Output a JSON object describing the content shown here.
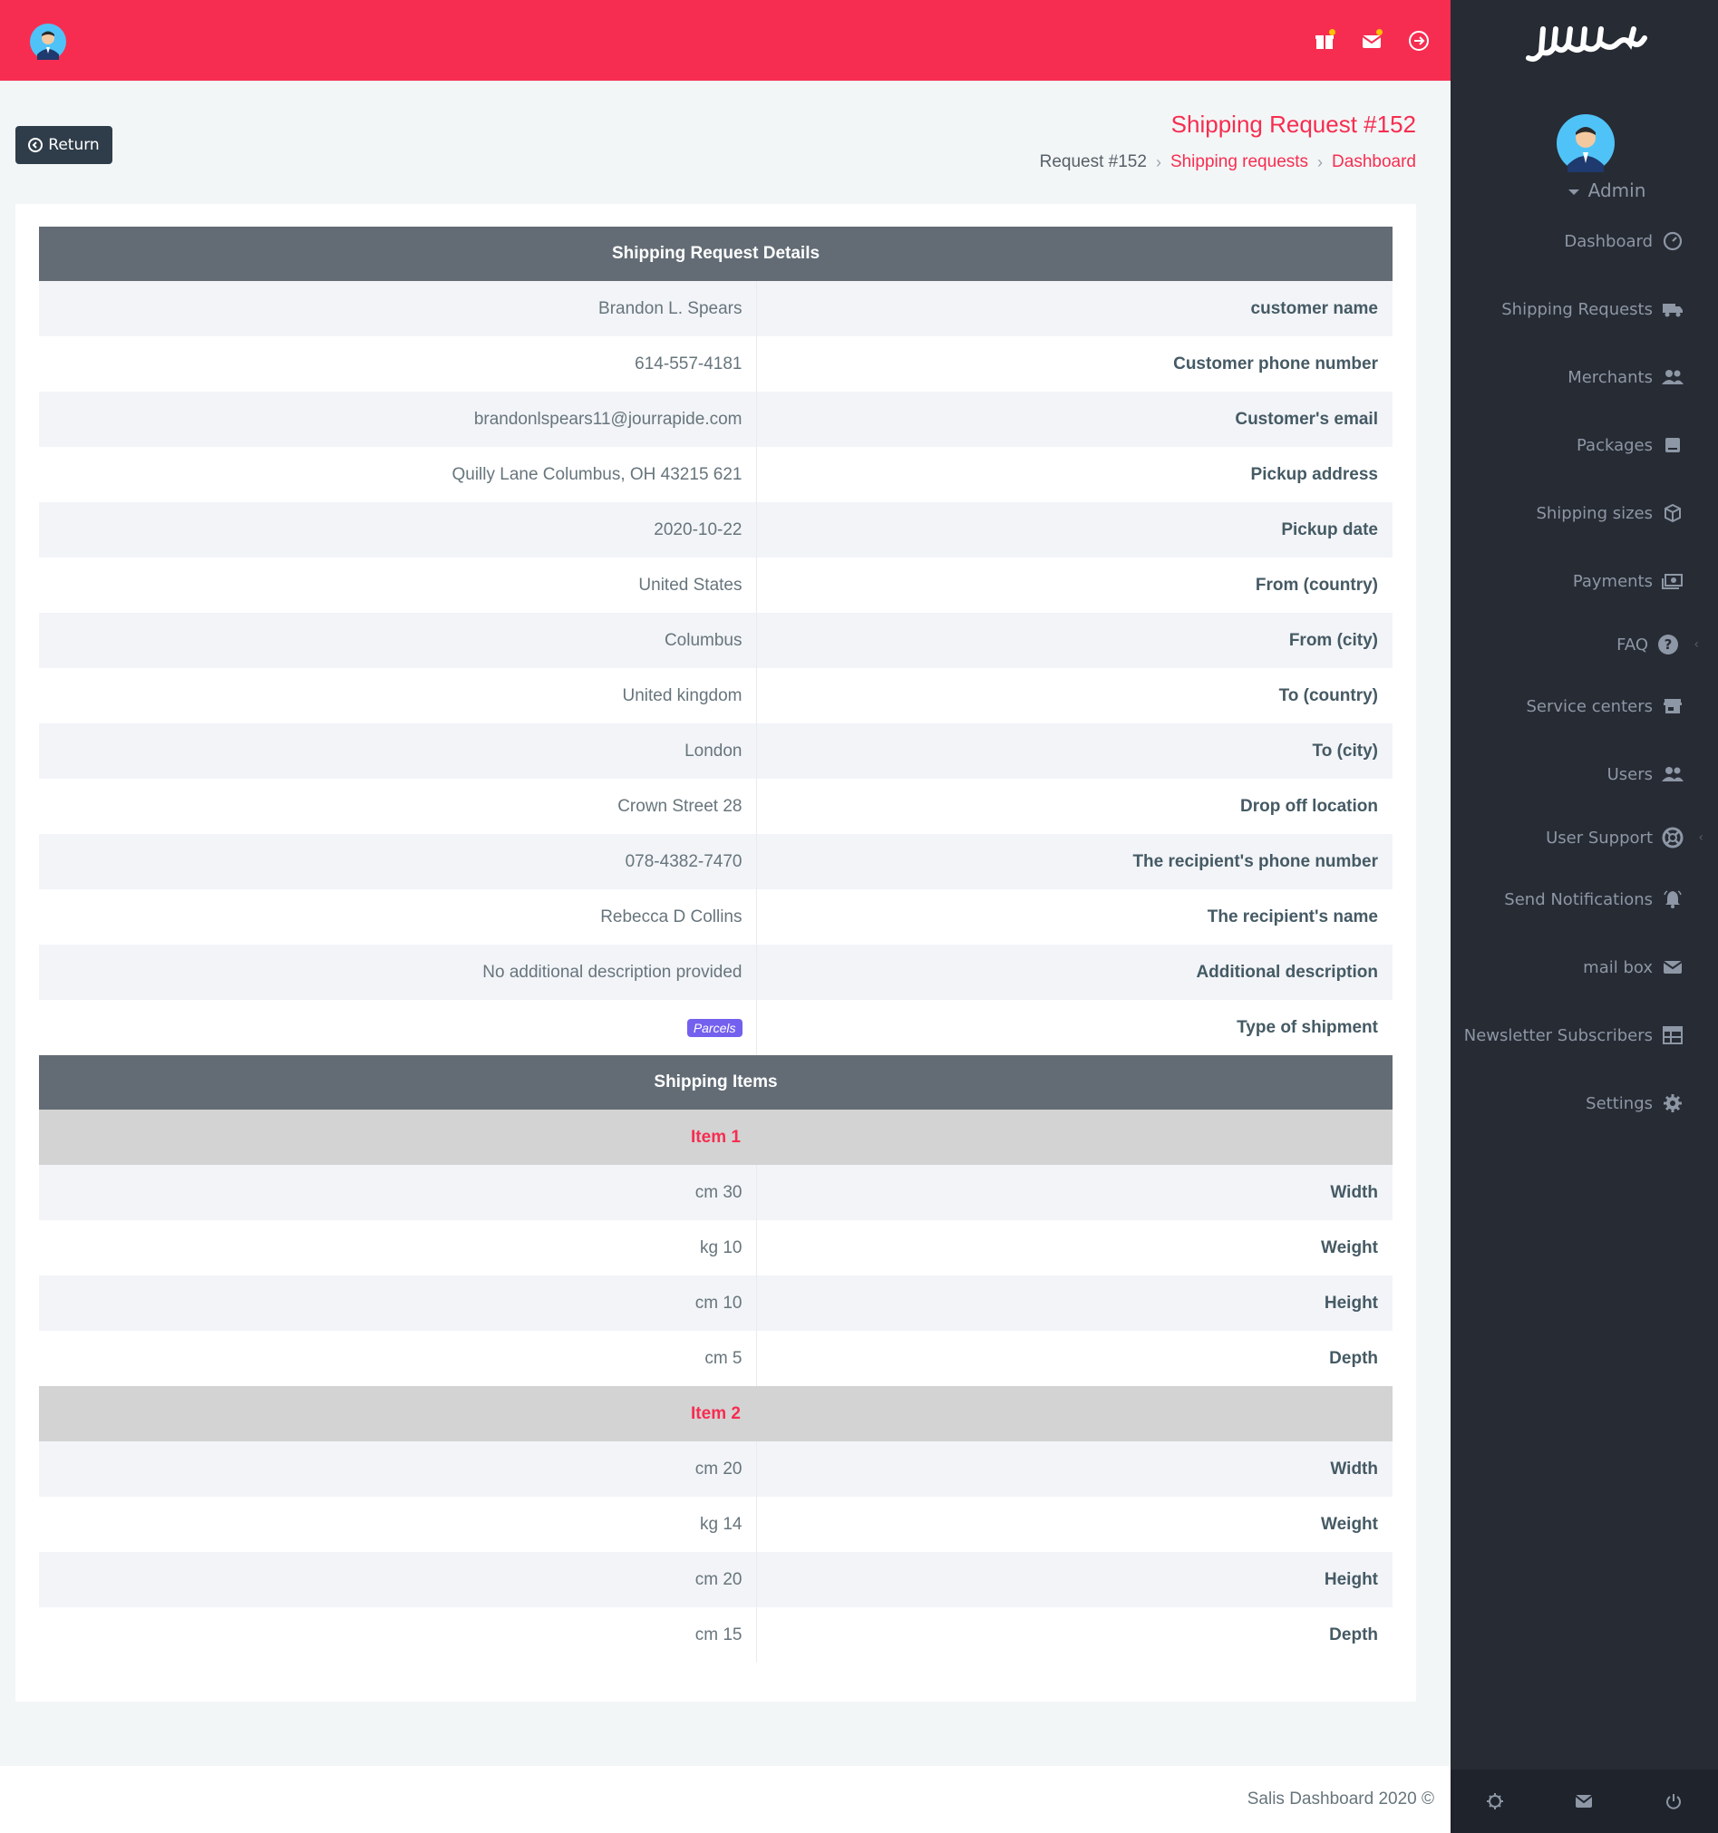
{
  "topbar": {
    "icons": [
      "gift-icon",
      "mail-icon",
      "logout-icon"
    ]
  },
  "sidebar": {
    "logo_text": "سلس",
    "user_name": "Admin",
    "items": [
      {
        "label": "Dashboard",
        "icon": "dashboard-icon"
      },
      {
        "label": "Shipping Requests",
        "icon": "truck-icon"
      },
      {
        "label": "Merchants",
        "icon": "users-icon"
      },
      {
        "label": "Packages",
        "icon": "package-icon"
      },
      {
        "label": "Shipping sizes",
        "icon": "cube-icon"
      },
      {
        "label": "Payments",
        "icon": "cash-icon"
      },
      {
        "label": "FAQ",
        "icon": "help-icon"
      },
      {
        "label": "Service centers",
        "icon": "store-icon"
      },
      {
        "label": "Users",
        "icon": "users-icon"
      },
      {
        "label": "User Support",
        "icon": "lifebuoy-icon"
      },
      {
        "label": "Send Notifications",
        "icon": "bell-icon"
      },
      {
        "label": "mail box",
        "icon": "mail-icon"
      },
      {
        "label": "Newsletter Subscribers",
        "icon": "table-icon"
      },
      {
        "label": "Settings",
        "icon": "gear-icon"
      }
    ],
    "bottom_icons": [
      "gear-icon",
      "mail-icon",
      "power-icon"
    ]
  },
  "header": {
    "return_label": "Return",
    "title": "Shipping Request #152",
    "breadcrumb": {
      "current": "Request #152",
      "parent": "Shipping requests",
      "root": "Dashboard"
    }
  },
  "details": {
    "heading": "Shipping Request Details",
    "rows": [
      {
        "value": "Brandon L. Spears",
        "label": "customer name"
      },
      {
        "value": "614-557-4181",
        "label": "Customer phone number"
      },
      {
        "value": "brandonlspears11@jourrapide.com",
        "label": "Customer's email"
      },
      {
        "value": "Quilly Lane Columbus, OH 43215 621",
        "label": "Pickup address"
      },
      {
        "value": "2020-10-22",
        "label": "Pickup date"
      },
      {
        "value": "United States",
        "label": "From (country)"
      },
      {
        "value": "Columbus",
        "label": "From (city)"
      },
      {
        "value": "United kingdom",
        "label": "To (country)"
      },
      {
        "value": "London",
        "label": "To (city)"
      },
      {
        "value": "Crown Street 28",
        "label": "Drop off location"
      },
      {
        "value": "078-4382-7470",
        "label": "The recipient's phone number"
      },
      {
        "value": "Rebecca D Collins",
        "label": "The recipient's name"
      },
      {
        "value": "No additional description provided",
        "label": "Additional description"
      }
    ],
    "shipment_type": {
      "badge": "Parcels",
      "label": "Type of shipment",
      "badge_color": "#7460ee"
    }
  },
  "items": {
    "heading": "Shipping Items",
    "list": [
      {
        "title": "Item 1",
        "rows": [
          {
            "value": "cm 30",
            "label": "Width"
          },
          {
            "value": "kg 10",
            "label": "Weight"
          },
          {
            "value": "cm 10",
            "label": "Height"
          },
          {
            "value": "cm 5",
            "label": "Depth"
          }
        ]
      },
      {
        "title": "Item 2",
        "rows": [
          {
            "value": "cm 20",
            "label": "Width"
          },
          {
            "value": "kg 14",
            "label": "Weight"
          },
          {
            "value": "cm 20",
            "label": "Height"
          },
          {
            "value": "cm 15",
            "label": "Depth"
          }
        ]
      }
    ]
  },
  "footer": {
    "text": "Salis Dashboard 2020 ©"
  },
  "colors": {
    "accent": "#f62d51",
    "sidebar": "#272b34",
    "table_head": "#636c75"
  }
}
